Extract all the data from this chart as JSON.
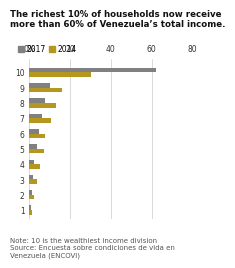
{
  "title_line1": "The richest 10% of households now receive",
  "title_line2": "more than 60% of Venezuela’s total income.",
  "categories": [
    1,
    2,
    3,
    4,
    5,
    6,
    7,
    8,
    9,
    10
  ],
  "values_2017": [
    1.0,
    1.2,
    2.0,
    2.5,
    3.5,
    4.5,
    6.0,
    7.5,
    10.0,
    62.0
  ],
  "values_2014": [
    1.5,
    2.5,
    3.5,
    5.0,
    7.0,
    7.5,
    10.5,
    13.0,
    16.0,
    30.0
  ],
  "color_2017": "#808080",
  "color_2014": "#b5961e",
  "xlim": [
    0,
    80
  ],
  "xticks": [
    0,
    20,
    40,
    60,
    80
  ],
  "xtick_labels": [
    "0%",
    "20",
    "40",
    "60",
    "80"
  ],
  "note_line1": "Note: 10 is the wealthiest income division",
  "note_line2": "Source: Encuesta sobre condiciones de vida en",
  "note_line3": "Venezuela (ENCOVI)",
  "legend_2017": "2017",
  "legend_2014": "2014",
  "title_fontsize": 6.2,
  "label_fontsize": 5.5,
  "note_fontsize": 5.0,
  "bg_color": "#ffffff",
  "grid_color": "#cccccc"
}
